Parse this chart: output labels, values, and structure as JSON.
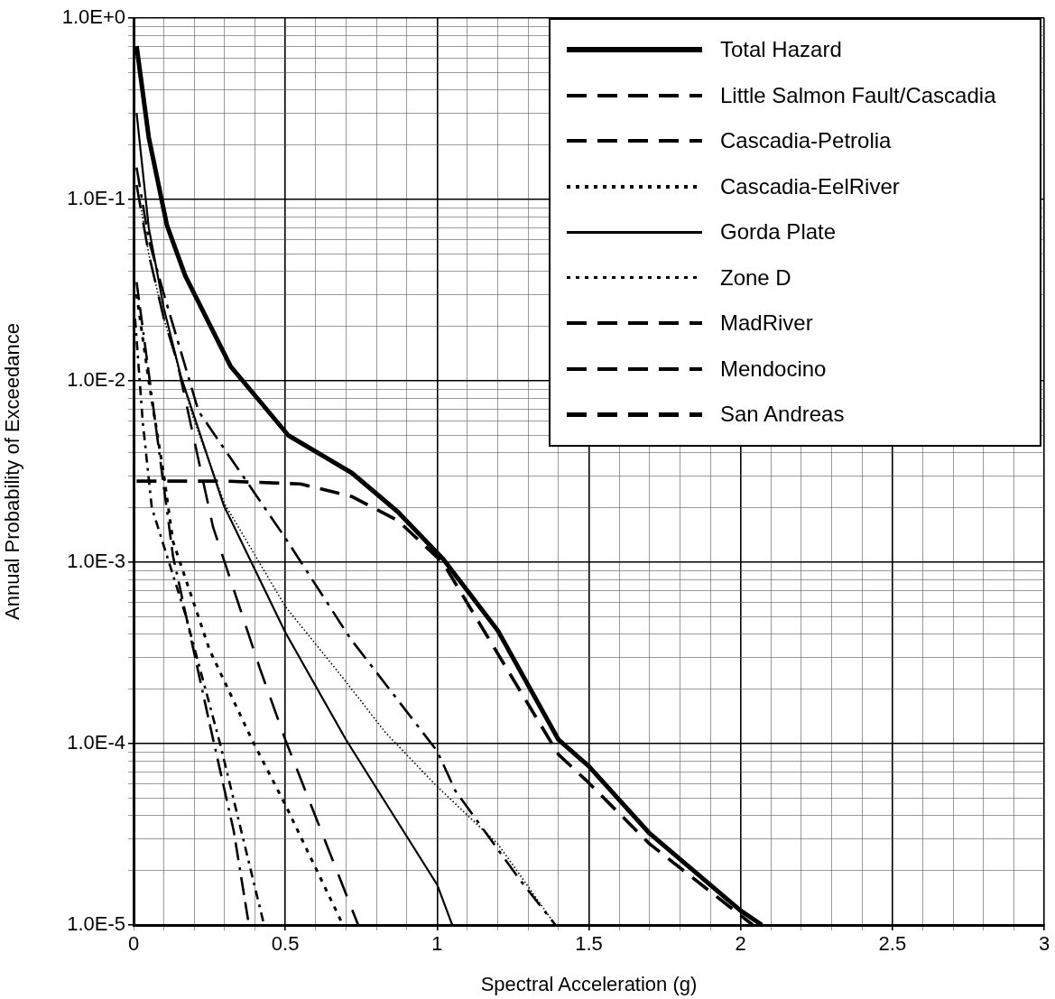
{
  "chart_data": {
    "type": "line",
    "xlabel": "Spectral Acceleration (g)",
    "ylabel": "Annual Probability of Exceedance",
    "log": "y",
    "grid": true,
    "legend": "top right",
    "marker": "none",
    "xlim": [
      0,
      3
    ],
    "ylim": [
      1e-05,
      1
    ],
    "xticks": [
      0,
      {
        "value": 0.1,
        "label": null
      },
      {
        "value": 0.2,
        "label": null
      },
      {
        "value": 0.3,
        "label": null
      },
      {
        "value": 0.4,
        "label": null
      },
      0.5,
      {
        "value": 0.6,
        "label": null
      },
      {
        "value": 0.7,
        "label": null
      },
      {
        "value": 0.8,
        "label": null
      },
      {
        "value": 0.9,
        "label": null
      },
      1,
      {
        "value": 1.1,
        "label": null
      },
      {
        "value": 1.2,
        "label": null
      },
      {
        "value": 1.3,
        "label": null
      },
      {
        "value": 1.4,
        "label": null
      },
      1.5,
      {
        "value": 1.6,
        "label": null
      },
      {
        "value": 1.7,
        "label": null
      },
      {
        "value": 1.8,
        "label": null
      },
      {
        "value": 1.9,
        "label": null
      },
      2,
      {
        "value": 2.1,
        "label": null
      },
      {
        "value": 2.2,
        "label": null
      },
      {
        "value": 2.3,
        "label": null
      },
      {
        "value": 2.4,
        "label": null
      },
      2.5,
      {
        "value": 2.6,
        "label": null
      },
      {
        "value": 2.7,
        "label": null
      },
      {
        "value": 2.8,
        "label": null
      },
      {
        "value": 2.9,
        "label": null
      },
      3
    ],
    "yticks": [
      {
        "value": 1e-05,
        "label": "1.0E-5"
      },
      {
        "value": 2e-05,
        "label": null
      },
      {
        "value": 3e-05,
        "label": null
      },
      {
        "value": 4e-05,
        "label": null
      },
      {
        "value": 5e-05,
        "label": null
      },
      {
        "value": 6e-05,
        "label": null
      },
      {
        "value": 7e-05,
        "label": null
      },
      {
        "value": 8e-05,
        "label": null
      },
      {
        "value": 9e-05,
        "label": null
      },
      {
        "value": 0.0001,
        "label": "1.0E-4"
      },
      {
        "value": 0.0002,
        "label": null
      },
      {
        "value": 0.0003,
        "label": null
      },
      {
        "value": 0.0004,
        "label": null
      },
      {
        "value": 0.0005,
        "label": null
      },
      {
        "value": 0.0006,
        "label": null
      },
      {
        "value": 0.0007,
        "label": null
      },
      {
        "value": 0.0008,
        "label": null
      },
      {
        "value": 0.0009,
        "label": null
      },
      {
        "value": 0.001,
        "label": "1.0E-3"
      },
      {
        "value": 0.002,
        "label": null
      },
      {
        "value": 0.003,
        "label": null
      },
      {
        "value": 0.004,
        "label": null
      },
      {
        "value": 0.005,
        "label": null
      },
      {
        "value": 0.006,
        "label": null
      },
      {
        "value": 0.007,
        "label": null
      },
      {
        "value": 0.008,
        "label": null
      },
      {
        "value": 0.009,
        "label": null
      },
      {
        "value": 0.01,
        "label": "1.0E-2"
      },
      {
        "value": 0.02,
        "label": null
      },
      {
        "value": 0.03,
        "label": null
      },
      {
        "value": 0.04,
        "label": null
      },
      {
        "value": 0.05,
        "label": null
      },
      {
        "value": 0.06,
        "label": null
      },
      {
        "value": 0.07,
        "label": null
      },
      {
        "value": 0.08,
        "label": null
      },
      {
        "value": 0.09,
        "label": null
      },
      {
        "value": 0.1,
        "label": "1.0E-1"
      },
      {
        "value": 0.2,
        "label": null
      },
      {
        "value": 0.3,
        "label": null
      },
      {
        "value": 0.4,
        "label": null
      },
      {
        "value": 0.5,
        "label": null
      },
      {
        "value": 0.6,
        "label": null
      },
      {
        "value": 0.7,
        "label": null
      },
      {
        "value": 0.8,
        "label": null
      },
      {
        "value": 0.9,
        "label": null
      },
      {
        "value": 1,
        "label": "1.0E+0"
      }
    ],
    "series": [
      {
        "name": "Total Hazard",
        "color": "#000000",
        "line_style": "solid",
        "x": [
          0.01,
          0.05,
          0.11,
          0.17,
          0.32,
          0.51,
          0.72,
          0.87,
          1.02,
          1.2,
          1.4,
          1.5,
          1.7,
          2.0,
          2.07
        ],
        "values": [
          0.7,
          0.22,
          0.072,
          0.038,
          0.012,
          0.005,
          0.0031,
          0.0019,
          0.00104,
          0.00042,
          0.000105,
          7.5e-05,
          3.2e-05,
          1.2e-05,
          1e-05
        ]
      },
      {
        "name": "Little Salmon Fault/Cascadia",
        "color": "#000000",
        "line_style": "dashed",
        "x": [
          0.01,
          0.05,
          0.1,
          0.143,
          0.262,
          0.416,
          0.5,
          0.74
        ],
        "values": [
          0.12,
          0.05,
          0.022,
          0.0129,
          0.00156,
          0.00026,
          0.000105,
          1e-05
        ]
      },
      {
        "name": "Cascadia-Petrolia",
        "color": "#000000",
        "line_style": "dashed",
        "x": [
          0.01,
          0.048,
          0.13,
          0.25,
          0.33,
          0.38
        ],
        "values": [
          0.035,
          0.0117,
          0.00108,
          0.00013,
          3.3e-05,
          1e-05
        ]
      },
      {
        "name": "Cascadia-EelRiver",
        "color": "#000000",
        "line_style": "dotted",
        "x": [
          0.01,
          0.05,
          0.1,
          0.13,
          0.25,
          0.39,
          0.5,
          0.69
        ],
        "values": [
          0.03,
          0.01,
          0.003,
          0.0013,
          0.00033,
          0.000105,
          4.6e-05,
          1e-05
        ]
      },
      {
        "name": "Gorda Plate",
        "color": "#000000",
        "line_style": "solid",
        "x": [
          0.01,
          0.05,
          0.1,
          0.155,
          0.297,
          0.5,
          0.7,
          1.0,
          1.05
        ],
        "values": [
          0.3,
          0.07,
          0.025,
          0.0107,
          0.00206,
          0.00041,
          0.000105,
          1.67e-05,
          1e-05
        ]
      },
      {
        "name": "Zone D",
        "color": "#000000",
        "line_style": "dotted",
        "x": [
          0.02,
          0.05,
          0.1,
          0.2,
          0.3,
          0.5,
          0.69,
          0.83,
          1.0,
          1.2,
          1.39
        ],
        "values": [
          0.1,
          0.05,
          0.022,
          0.006,
          0.0021,
          0.00057,
          0.00023,
          0.000115,
          5.8e-05,
          2.8e-05,
          1e-05
        ]
      },
      {
        "name": "MadRiver",
        "color": "#000000",
        "line_style": "dashed",
        "x": [
          0.01,
          0.05,
          0.1,
          0.214,
          0.5,
          0.714,
          1.0,
          1.06,
          1.27,
          1.39
        ],
        "values": [
          0.15,
          0.06,
          0.03,
          0.0068,
          0.00136,
          0.00038,
          9.1e-05,
          5.5e-05,
          1.8e-05,
          1e-05
        ]
      },
      {
        "name": "Mendocino",
        "color": "#000000",
        "line_style": "dashed",
        "x": [
          0.005,
          0.03,
          0.06,
          0.17,
          0.285,
          0.43
        ],
        "values": [
          0.022,
          0.006,
          0.002,
          0.00052,
          0.0001,
          1e-05
        ]
      },
      {
        "name": "San Andreas",
        "color": "#000000",
        "line_style": "dashed",
        "x": [
          0.01,
          0.3,
          0.55,
          0.72,
          0.87,
          1.02,
          1.4,
          1.49,
          1.7,
          2.04
        ],
        "values": [
          0.0028,
          0.0028,
          0.0027,
          0.0023,
          0.0017,
          0.00099,
          8.7e-05,
          6.3e-05,
          2.8e-05,
          1e-05
        ]
      }
    ]
  }
}
